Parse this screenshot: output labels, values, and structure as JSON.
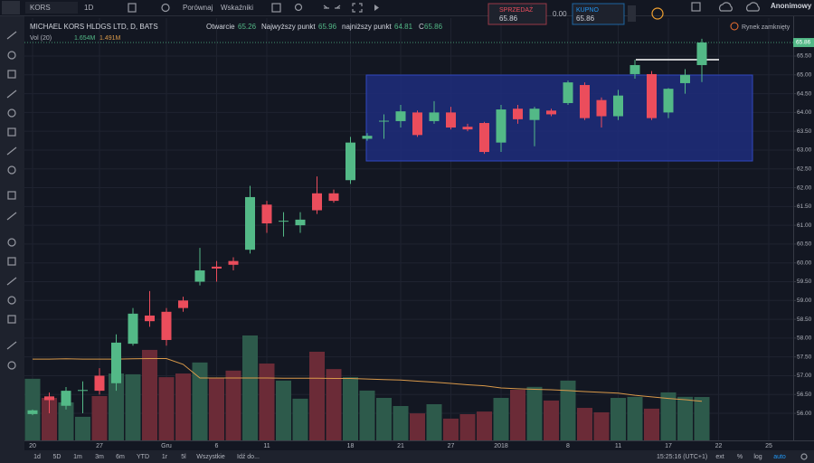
{
  "ui": {
    "symbol": "KORS",
    "interval": "1D",
    "compare": "Porównaj",
    "indicators": "Wskaźniki",
    "sell": {
      "label": "SPRZEDAŻ",
      "price": 65.86
    },
    "spread": "0.00",
    "buy": {
      "label": "KUPNO",
      "price": 65.86
    },
    "user": "Anonimowy",
    "market_status": "Rynek zamknięty",
    "ranges": [
      "1d",
      "5D",
      "1m",
      "3m",
      "6m",
      "YTD",
      "1r",
      "5l",
      "Wszystkie"
    ],
    "goto": "Idź do...",
    "clock": "15:25:16 (UTC+1)",
    "scale_options": [
      "ext",
      "%",
      "log",
      "auto"
    ]
  },
  "chart_data": {
    "type": "candlestick",
    "title": "MICHAEL KORS HLDGS LTD, D, BATS",
    "open_label": "Otwarcie",
    "high_label": "Najwyższy punkt",
    "low_label": "najniższy punkt",
    "close_label": "C",
    "volume_title": "Vol (20)",
    "volume_current": {
      "value": 1.654,
      "label": "1.654M"
    },
    "volume_ma_current": {
      "value": 1.491,
      "label": "1.491M"
    },
    "categories": [
      "20",
      null,
      null,
      null,
      "27",
      null,
      null,
      null,
      "Gru",
      null,
      null,
      "6",
      null,
      null,
      "11",
      null,
      null,
      null,
      null,
      "18",
      null,
      null,
      "21",
      null,
      null,
      "27",
      null,
      null,
      "2018",
      null,
      null,
      null,
      "8",
      null,
      null,
      "11",
      null,
      null,
      "17",
      null,
      null,
      "22",
      null,
      null,
      "25"
    ],
    "open": [
      55.98,
      56.45,
      56.2,
      56.6,
      57.0,
      56.8,
      57.85,
      58.6,
      58.7,
      59.0,
      59.5,
      59.9,
      60.05,
      60.35,
      61.55,
      61.1,
      61.0,
      61.85,
      61.85,
      62.2,
      63.3,
      63.77,
      63.77,
      64.0,
      63.77,
      64.0,
      63.62,
      63.72,
      63.2,
      64.1,
      63.8,
      64.05,
      64.25,
      64.73,
      64.33,
      63.9,
      65.02,
      65.02,
      64.0,
      64.78,
      65.26,
      null,
      null,
      null,
      null
    ],
    "high": [
      56.1,
      56.55,
      56.7,
      56.85,
      57.2,
      58.1,
      58.8,
      59.25,
      58.8,
      59.1,
      60.4,
      60.05,
      60.15,
      62.05,
      61.65,
      61.35,
      61.35,
      62.3,
      61.95,
      63.35,
      63.45,
      63.95,
      64.2,
      64.05,
      64.3,
      64.15,
      63.7,
      63.75,
      64.2,
      64.2,
      64.15,
      64.1,
      64.85,
      64.8,
      64.4,
      64.6,
      65.4,
      65.1,
      64.65,
      65.15,
      65.96,
      null,
      null,
      null,
      null
    ],
    "low": [
      55.95,
      56.0,
      56.1,
      56.0,
      56.5,
      56.6,
      57.8,
      58.3,
      57.8,
      58.7,
      59.4,
      59.5,
      59.8,
      60.25,
      60.8,
      60.7,
      60.8,
      61.3,
      61.6,
      62.1,
      63.25,
      63.3,
      63.6,
      63.35,
      63.7,
      63.55,
      63.5,
      62.9,
      62.95,
      63.7,
      63.1,
      63.9,
      64.2,
      63.8,
      63.6,
      63.8,
      64.9,
      63.8,
      63.85,
      64.5,
      64.81,
      null,
      null,
      null,
      null
    ],
    "close": [
      56.08,
      56.35,
      56.6,
      56.62,
      56.6,
      57.88,
      58.65,
      58.45,
      57.95,
      58.8,
      59.8,
      59.85,
      59.95,
      61.75,
      61.05,
      61.12,
      61.15,
      61.4,
      61.65,
      63.2,
      63.38,
      63.78,
      64.03,
      63.4,
      64.0,
      63.6,
      63.55,
      62.95,
      64.08,
      63.82,
      64.1,
      63.95,
      64.8,
      63.85,
      63.9,
      64.45,
      65.26,
      63.85,
      64.63,
      65.0,
      65.86,
      null,
      null,
      null,
      null
    ],
    "volume": [
      2.35,
      1.62,
      1.45,
      0.9,
      1.69,
      2.55,
      2.52,
      3.45,
      2.41,
      2.55,
      2.97,
      2.38,
      2.66,
      4.0,
      2.93,
      2.28,
      1.59,
      3.38,
      2.72,
      2.41,
      1.9,
      1.62,
      1.31,
      1.03,
      1.38,
      0.83,
      1.0,
      1.1,
      1.62,
      1.93,
      2.04,
      1.52,
      2.28,
      1.24,
      1.07,
      1.62,
      1.66,
      1.21,
      1.83,
      1.66,
      1.654,
      null,
      null,
      null,
      null
    ],
    "volume_ma": [
      3.1,
      3.1,
      3.11,
      3.1,
      3.1,
      3.1,
      3.11,
      3.12,
      3.12,
      2.9,
      2.38,
      2.38,
      2.38,
      2.38,
      2.38,
      2.37,
      2.37,
      2.37,
      2.36,
      2.36,
      2.34,
      2.32,
      2.3,
      2.26,
      2.22,
      2.17,
      2.12,
      2.08,
      2.0,
      1.97,
      1.95,
      1.93,
      1.9,
      1.86,
      1.83,
      1.8,
      1.72,
      1.66,
      1.6,
      1.55,
      1.491,
      null,
      null,
      null,
      null
    ],
    "ylim": [
      55.28,
      66.51
    ],
    "yticks": [
      {
        "value": 56,
        "label": "56.00"
      },
      {
        "value": 56.5,
        "label": "56.50"
      },
      {
        "value": 57,
        "label": "57.00"
      },
      {
        "value": 57.5,
        "label": "57.50"
      },
      {
        "value": 58,
        "label": "58.00"
      },
      {
        "value": 58.5,
        "label": "58.50"
      },
      {
        "value": 59,
        "label": "59.00"
      },
      {
        "value": 59.5,
        "label": "59.50"
      },
      {
        "value": 60,
        "label": "60.00"
      },
      {
        "value": 60.5,
        "label": "60.50"
      },
      {
        "value": 61,
        "label": "61.00"
      },
      {
        "value": 61.5,
        "label": "61.50"
      },
      {
        "value": 62,
        "label": "62.00"
      },
      {
        "value": 62.5,
        "label": "62.50"
      },
      {
        "value": 63,
        "label": "63.00"
      },
      {
        "value": 63.5,
        "label": "63.50"
      },
      {
        "value": 64,
        "label": "64.00"
      },
      {
        "value": 64.5,
        "label": "64.50"
      },
      {
        "value": 65,
        "label": "65.00"
      },
      {
        "value": 65.5,
        "label": "65.50"
      }
    ],
    "volume_ylim": [
      0,
      16.1
    ],
    "grid": true,
    "up_color": "#53b987",
    "down_color": "#eb4d5c",
    "volume_up_color": "#2d5a4b",
    "volume_down_color": "#6b2b37",
    "volume_ma_color": "#d9994a"
  }
}
